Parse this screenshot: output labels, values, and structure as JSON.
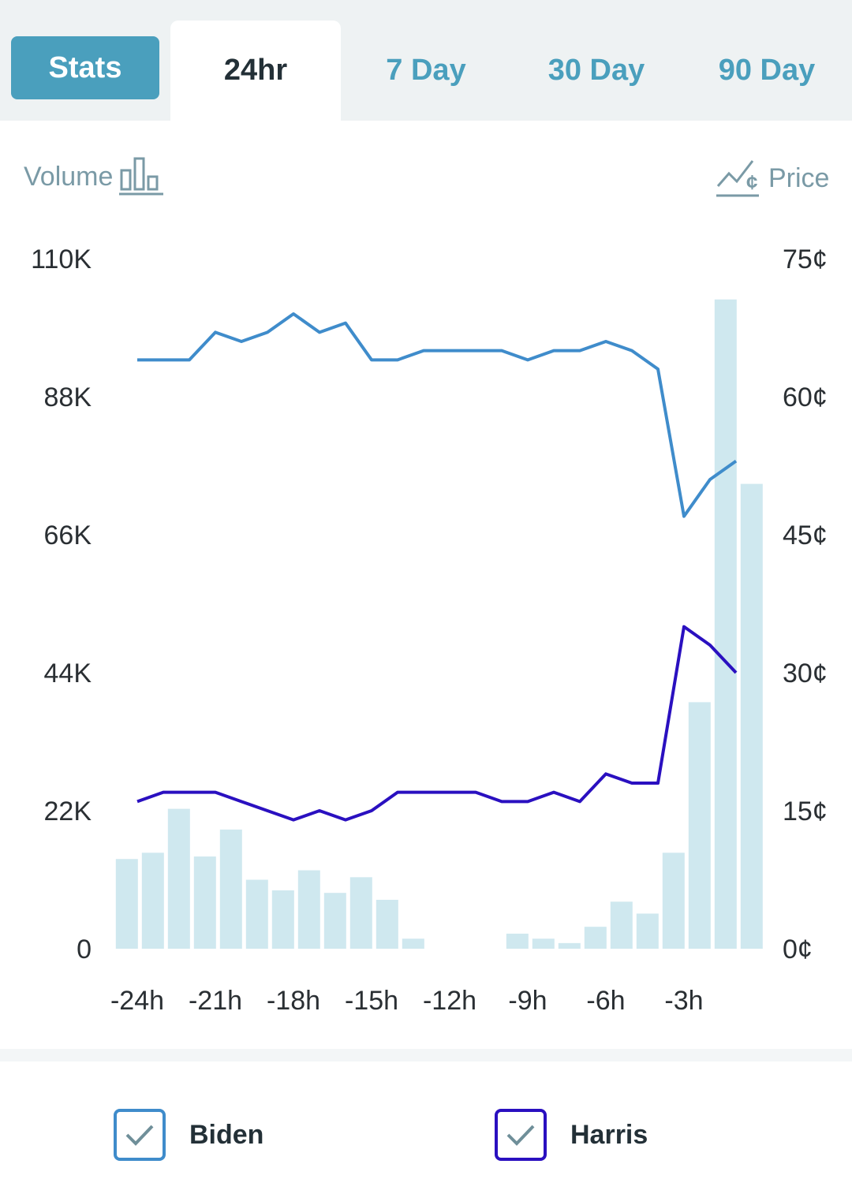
{
  "tabs": {
    "stats": "Stats",
    "items": [
      "24hr",
      "7 Day",
      "30 Day",
      "90 Day"
    ],
    "active": "24hr"
  },
  "toggles": {
    "volume_label": "Volume",
    "price_label": "Price"
  },
  "legend": {
    "biden": "Biden",
    "harris": "Harris"
  },
  "colors": {
    "accent": "#4a9fbd",
    "biden": "#3f8ccb",
    "harris": "#2a10c0",
    "volume_bar": "#cfe8ef"
  },
  "chart_data": {
    "type": "line",
    "x_ticks": [
      "-24h",
      "-21h",
      "-18h",
      "-15h",
      "-12h",
      "-9h",
      "-6h",
      "-3h"
    ],
    "left_axis": {
      "label": "Volume",
      "ticks": [
        "0",
        "22K",
        "44K",
        "66K",
        "88K",
        "110K"
      ],
      "ylim": [
        0,
        110000
      ]
    },
    "right_axis": {
      "label": "Price",
      "ticks": [
        "0¢",
        "15¢",
        "30¢",
        "45¢",
        "60¢",
        "75¢"
      ],
      "ylim": [
        0,
        75
      ]
    },
    "volume": {
      "x": [
        -24.4,
        -23.4,
        -22.4,
        -21.4,
        -20.4,
        -19.4,
        -18.4,
        -17.4,
        -16.4,
        -15.4,
        -14.4,
        -13.4,
        -12.4,
        -11.4,
        -10.4,
        -9.4,
        -8.4,
        -7.4,
        -6.4,
        -5.4,
        -4.4,
        -3.4,
        -2.4,
        -1.4,
        -0.4
      ],
      "values": [
        14300,
        15300,
        22300,
        14700,
        19000,
        11000,
        9300,
        12500,
        8900,
        11400,
        7800,
        1600,
        0,
        0,
        0,
        2400,
        1600,
        900,
        3500,
        7500,
        5600,
        15300,
        39300,
        103500,
        74100
      ]
    },
    "series": [
      {
        "name": "Biden",
        "x": [
          -24,
          -23,
          -22,
          -21,
          -20,
          -19,
          -18,
          -17,
          -16,
          -15,
          -14,
          -13,
          -12,
          -11,
          -10,
          -9,
          -8,
          -7,
          -6,
          -5,
          -4,
          -3,
          -2,
          -1
        ],
        "values": [
          64,
          64,
          64,
          67,
          66,
          67,
          69,
          67,
          68,
          64,
          64,
          65,
          65,
          65,
          65,
          64,
          65,
          65,
          66,
          65,
          63,
          47,
          51,
          53
        ]
      },
      {
        "name": "Harris",
        "x": [
          -24,
          -23,
          -22,
          -21,
          -20,
          -19,
          -18,
          -17,
          -16,
          -15,
          -14,
          -13,
          -12,
          -11,
          -10,
          -9,
          -8,
          -7,
          -6,
          -5,
          -4,
          -3,
          -2,
          -1
        ],
        "values": [
          16,
          17,
          17,
          17,
          16,
          15,
          14,
          15,
          14,
          15,
          17,
          17,
          17,
          17,
          16,
          16,
          17,
          16,
          19,
          18,
          18,
          35,
          33,
          30
        ]
      }
    ],
    "grid": false
  }
}
